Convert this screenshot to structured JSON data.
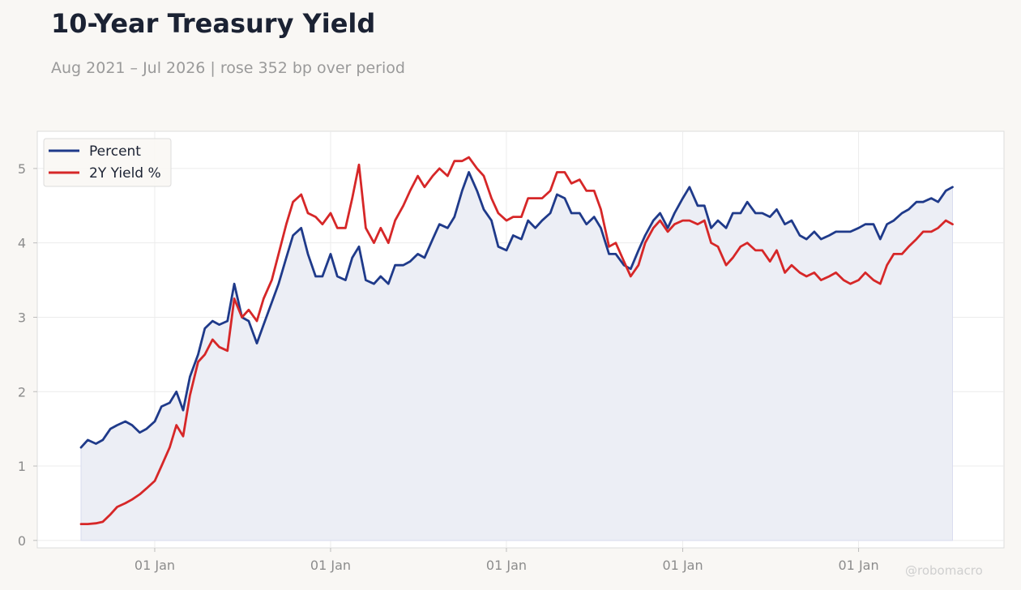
{
  "title": "10-Year Treasury Yield",
  "subtitle": "Aug 2021 – Jul 2026 | rose 352 bp over period",
  "watermark": "@robomacro",
  "colors": {
    "series_1": "#1f3a8a",
    "series_2": "#d62728",
    "fill": "#eceef5",
    "grid": "#ececec",
    "tick_text": "#8c8c8c"
  },
  "chart_data": {
    "type": "line",
    "x_axis": {
      "type": "date",
      "range": [
        "2021-08-01",
        "2026-07-31"
      ],
      "ticks": [
        {
          "date": "2022-01-01",
          "label": "01 Jan"
        },
        {
          "date": "2023-01-01",
          "label": "01 Jan"
        },
        {
          "date": "2024-01-01",
          "label": "01 Jan"
        },
        {
          "date": "2025-01-01",
          "label": "01 Jan"
        },
        {
          "date": "2026-01-01",
          "label": "01 Jan"
        }
      ]
    },
    "y_axis": {
      "ylim": [
        -0.1,
        5.5
      ],
      "ticks": [
        0,
        1,
        2,
        3,
        4,
        5
      ]
    },
    "grid": true,
    "legend": "top-left",
    "area_fill_series": 0,
    "series": [
      {
        "name": "Percent",
        "points": [
          [
            "2021-08-01",
            1.25
          ],
          [
            "2021-08-15",
            1.35
          ],
          [
            "2021-09-01",
            1.3
          ],
          [
            "2021-09-15",
            1.35
          ],
          [
            "2021-10-01",
            1.5
          ],
          [
            "2021-10-15",
            1.55
          ],
          [
            "2021-11-01",
            1.6
          ],
          [
            "2021-11-15",
            1.55
          ],
          [
            "2021-12-01",
            1.45
          ],
          [
            "2021-12-15",
            1.5
          ],
          [
            "2022-01-01",
            1.6
          ],
          [
            "2022-01-15",
            1.8
          ],
          [
            "2022-02-01",
            1.85
          ],
          [
            "2022-02-15",
            2.0
          ],
          [
            "2022-03-01",
            1.75
          ],
          [
            "2022-03-15",
            2.2
          ],
          [
            "2022-04-01",
            2.5
          ],
          [
            "2022-04-15",
            2.85
          ],
          [
            "2022-05-01",
            2.95
          ],
          [
            "2022-05-15",
            2.9
          ],
          [
            "2022-06-01",
            2.95
          ],
          [
            "2022-06-15",
            3.45
          ],
          [
            "2022-07-01",
            3.0
          ],
          [
            "2022-07-15",
            2.95
          ],
          [
            "2022-08-01",
            2.65
          ],
          [
            "2022-08-15",
            2.9
          ],
          [
            "2022-09-01",
            3.2
          ],
          [
            "2022-09-15",
            3.45
          ],
          [
            "2022-10-01",
            3.8
          ],
          [
            "2022-10-15",
            4.1
          ],
          [
            "2022-11-01",
            4.2
          ],
          [
            "2022-11-15",
            3.85
          ],
          [
            "2022-12-01",
            3.55
          ],
          [
            "2022-12-15",
            3.55
          ],
          [
            "2023-01-01",
            3.85
          ],
          [
            "2023-01-15",
            3.55
          ],
          [
            "2023-02-01",
            3.5
          ],
          [
            "2023-02-15",
            3.8
          ],
          [
            "2023-03-01",
            3.95
          ],
          [
            "2023-03-15",
            3.5
          ],
          [
            "2023-04-01",
            3.45
          ],
          [
            "2023-04-15",
            3.55
          ],
          [
            "2023-05-01",
            3.45
          ],
          [
            "2023-05-15",
            3.7
          ],
          [
            "2023-06-01",
            3.7
          ],
          [
            "2023-06-15",
            3.75
          ],
          [
            "2023-07-01",
            3.85
          ],
          [
            "2023-07-15",
            3.8
          ],
          [
            "2023-08-01",
            4.05
          ],
          [
            "2023-08-15",
            4.25
          ],
          [
            "2023-09-01",
            4.2
          ],
          [
            "2023-09-15",
            4.35
          ],
          [
            "2023-10-01",
            4.7
          ],
          [
            "2023-10-15",
            4.95
          ],
          [
            "2023-11-01",
            4.7
          ],
          [
            "2023-11-15",
            4.45
          ],
          [
            "2023-12-01",
            4.3
          ],
          [
            "2023-12-15",
            3.95
          ],
          [
            "2024-01-01",
            3.9
          ],
          [
            "2024-01-15",
            4.1
          ],
          [
            "2024-02-01",
            4.05
          ],
          [
            "2024-02-15",
            4.3
          ],
          [
            "2024-03-01",
            4.2
          ],
          [
            "2024-03-15",
            4.3
          ],
          [
            "2024-04-01",
            4.4
          ],
          [
            "2024-04-15",
            4.65
          ],
          [
            "2024-05-01",
            4.6
          ],
          [
            "2024-05-15",
            4.4
          ],
          [
            "2024-06-01",
            4.4
          ],
          [
            "2024-06-15",
            4.25
          ],
          [
            "2024-07-01",
            4.35
          ],
          [
            "2024-07-15",
            4.2
          ],
          [
            "2024-08-01",
            3.85
          ],
          [
            "2024-08-15",
            3.85
          ],
          [
            "2024-09-01",
            3.7
          ],
          [
            "2024-09-15",
            3.65
          ],
          [
            "2024-10-01",
            3.9
          ],
          [
            "2024-10-15",
            4.1
          ],
          [
            "2024-11-01",
            4.3
          ],
          [
            "2024-11-15",
            4.4
          ],
          [
            "2024-12-01",
            4.2
          ],
          [
            "2024-12-15",
            4.4
          ],
          [
            "2025-01-01",
            4.6
          ],
          [
            "2025-01-15",
            4.75
          ],
          [
            "2025-02-01",
            4.5
          ],
          [
            "2025-02-15",
            4.5
          ],
          [
            "2025-03-01",
            4.2
          ],
          [
            "2025-03-15",
            4.3
          ],
          [
            "2025-04-01",
            4.2
          ],
          [
            "2025-04-15",
            4.4
          ],
          [
            "2025-05-01",
            4.4
          ],
          [
            "2025-05-15",
            4.55
          ],
          [
            "2025-06-01",
            4.4
          ],
          [
            "2025-06-15",
            4.4
          ],
          [
            "2025-07-01",
            4.35
          ],
          [
            "2025-07-15",
            4.45
          ],
          [
            "2025-08-01",
            4.25
          ],
          [
            "2025-08-15",
            4.3
          ],
          [
            "2025-09-01",
            4.1
          ],
          [
            "2025-09-15",
            4.05
          ],
          [
            "2025-10-01",
            4.15
          ],
          [
            "2025-10-15",
            4.05
          ],
          [
            "2025-11-01",
            4.1
          ],
          [
            "2025-11-15",
            4.15
          ],
          [
            "2025-12-01",
            4.15
          ],
          [
            "2025-12-15",
            4.15
          ],
          [
            "2026-01-01",
            4.2
          ],
          [
            "2026-01-15",
            4.25
          ],
          [
            "2026-02-01",
            4.25
          ],
          [
            "2026-02-15",
            4.05
          ],
          [
            "2026-03-01",
            4.25
          ],
          [
            "2026-03-15",
            4.3
          ],
          [
            "2026-04-01",
            4.4
          ],
          [
            "2026-04-15",
            4.45
          ],
          [
            "2026-05-01",
            4.55
          ],
          [
            "2026-05-15",
            4.55
          ],
          [
            "2026-06-01",
            4.6
          ],
          [
            "2026-06-15",
            4.55
          ],
          [
            "2026-07-01",
            4.7
          ],
          [
            "2026-07-15",
            4.75
          ]
        ]
      },
      {
        "name": "2Y Yield %",
        "points": [
          [
            "2021-08-01",
            0.22
          ],
          [
            "2021-08-15",
            0.22
          ],
          [
            "2021-09-01",
            0.23
          ],
          [
            "2021-09-15",
            0.25
          ],
          [
            "2021-10-01",
            0.35
          ],
          [
            "2021-10-15",
            0.45
          ],
          [
            "2021-11-01",
            0.5
          ],
          [
            "2021-11-15",
            0.55
          ],
          [
            "2021-12-01",
            0.62
          ],
          [
            "2021-12-15",
            0.7
          ],
          [
            "2022-01-01",
            0.8
          ],
          [
            "2022-01-15",
            1.0
          ],
          [
            "2022-02-01",
            1.25
          ],
          [
            "2022-02-15",
            1.55
          ],
          [
            "2022-03-01",
            1.4
          ],
          [
            "2022-03-15",
            1.95
          ],
          [
            "2022-04-01",
            2.4
          ],
          [
            "2022-04-15",
            2.5
          ],
          [
            "2022-05-01",
            2.7
          ],
          [
            "2022-05-15",
            2.6
          ],
          [
            "2022-06-01",
            2.55
          ],
          [
            "2022-06-15",
            3.25
          ],
          [
            "2022-07-01",
            3.0
          ],
          [
            "2022-07-15",
            3.1
          ],
          [
            "2022-08-01",
            2.95
          ],
          [
            "2022-08-15",
            3.25
          ],
          [
            "2022-09-01",
            3.5
          ],
          [
            "2022-09-15",
            3.85
          ],
          [
            "2022-10-01",
            4.25
          ],
          [
            "2022-10-15",
            4.55
          ],
          [
            "2022-11-01",
            4.65
          ],
          [
            "2022-11-15",
            4.4
          ],
          [
            "2022-12-01",
            4.35
          ],
          [
            "2022-12-15",
            4.25
          ],
          [
            "2023-01-01",
            4.4
          ],
          [
            "2023-01-15",
            4.2
          ],
          [
            "2023-02-01",
            4.2
          ],
          [
            "2023-02-15",
            4.6
          ],
          [
            "2023-03-01",
            5.05
          ],
          [
            "2023-03-15",
            4.2
          ],
          [
            "2023-04-01",
            4.0
          ],
          [
            "2023-04-15",
            4.2
          ],
          [
            "2023-05-01",
            4.0
          ],
          [
            "2023-05-15",
            4.3
          ],
          [
            "2023-06-01",
            4.5
          ],
          [
            "2023-06-15",
            4.7
          ],
          [
            "2023-07-01",
            4.9
          ],
          [
            "2023-07-15",
            4.75
          ],
          [
            "2023-08-01",
            4.9
          ],
          [
            "2023-08-15",
            5.0
          ],
          [
            "2023-09-01",
            4.9
          ],
          [
            "2023-09-15",
            5.1
          ],
          [
            "2023-10-01",
            5.1
          ],
          [
            "2023-10-15",
            5.15
          ],
          [
            "2023-11-01",
            5.0
          ],
          [
            "2023-11-15",
            4.9
          ],
          [
            "2023-12-01",
            4.6
          ],
          [
            "2023-12-15",
            4.4
          ],
          [
            "2024-01-01",
            4.3
          ],
          [
            "2024-01-15",
            4.35
          ],
          [
            "2024-02-01",
            4.35
          ],
          [
            "2024-02-15",
            4.6
          ],
          [
            "2024-03-01",
            4.6
          ],
          [
            "2024-03-15",
            4.6
          ],
          [
            "2024-04-01",
            4.7
          ],
          [
            "2024-04-15",
            4.95
          ],
          [
            "2024-05-01",
            4.95
          ],
          [
            "2024-05-15",
            4.8
          ],
          [
            "2024-06-01",
            4.85
          ],
          [
            "2024-06-15",
            4.7
          ],
          [
            "2024-07-01",
            4.7
          ],
          [
            "2024-07-15",
            4.45
          ],
          [
            "2024-08-01",
            3.95
          ],
          [
            "2024-08-15",
            4.0
          ],
          [
            "2024-09-01",
            3.75
          ],
          [
            "2024-09-15",
            3.55
          ],
          [
            "2024-10-01",
            3.7
          ],
          [
            "2024-10-15",
            4.0
          ],
          [
            "2024-11-01",
            4.2
          ],
          [
            "2024-11-15",
            4.3
          ],
          [
            "2024-12-01",
            4.15
          ],
          [
            "2024-12-15",
            4.25
          ],
          [
            "2025-01-01",
            4.3
          ],
          [
            "2025-01-15",
            4.3
          ],
          [
            "2025-02-01",
            4.25
          ],
          [
            "2025-02-15",
            4.3
          ],
          [
            "2025-03-01",
            4.0
          ],
          [
            "2025-03-15",
            3.95
          ],
          [
            "2025-04-01",
            3.7
          ],
          [
            "2025-04-15",
            3.8
          ],
          [
            "2025-05-01",
            3.95
          ],
          [
            "2025-05-15",
            4.0
          ],
          [
            "2025-06-01",
            3.9
          ],
          [
            "2025-06-15",
            3.9
          ],
          [
            "2025-07-01",
            3.75
          ],
          [
            "2025-07-15",
            3.9
          ],
          [
            "2025-08-01",
            3.6
          ],
          [
            "2025-08-15",
            3.7
          ],
          [
            "2025-09-01",
            3.6
          ],
          [
            "2025-09-15",
            3.55
          ],
          [
            "2025-10-01",
            3.6
          ],
          [
            "2025-10-15",
            3.5
          ],
          [
            "2025-11-01",
            3.55
          ],
          [
            "2025-11-15",
            3.6
          ],
          [
            "2025-12-01",
            3.5
          ],
          [
            "2025-12-15",
            3.45
          ],
          [
            "2026-01-01",
            3.5
          ],
          [
            "2026-01-15",
            3.6
          ],
          [
            "2026-02-01",
            3.5
          ],
          [
            "2026-02-15",
            3.45
          ],
          [
            "2026-03-01",
            3.7
          ],
          [
            "2026-03-15",
            3.85
          ],
          [
            "2026-04-01",
            3.85
          ],
          [
            "2026-04-15",
            3.95
          ],
          [
            "2026-05-01",
            4.05
          ],
          [
            "2026-05-15",
            4.15
          ],
          [
            "2026-06-01",
            4.15
          ],
          [
            "2026-06-15",
            4.2
          ],
          [
            "2026-07-01",
            4.3
          ],
          [
            "2026-07-15",
            4.25
          ]
        ]
      }
    ]
  }
}
